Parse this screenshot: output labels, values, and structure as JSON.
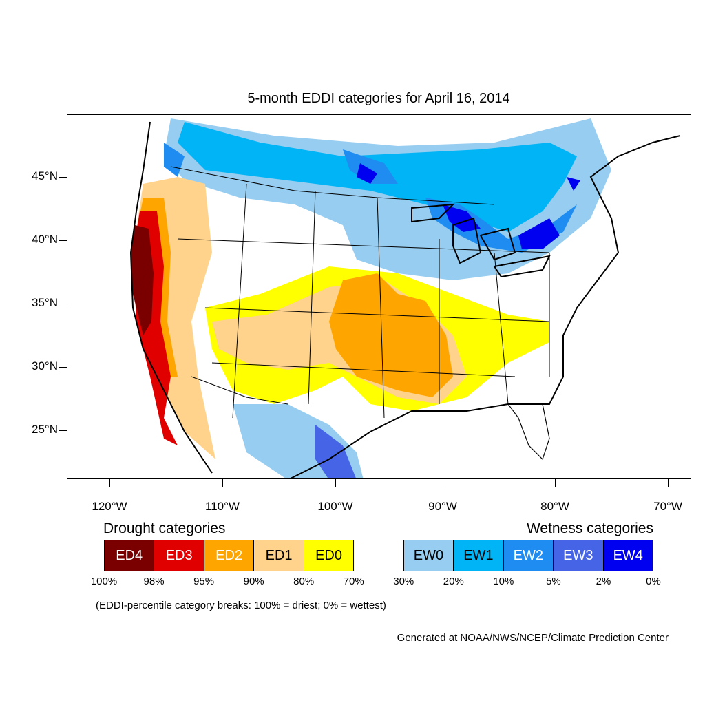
{
  "title": "5-month EDDI categories for April 16, 2014",
  "lat_labels": [
    "45°N",
    "40°N",
    "35°N",
    "30°N",
    "25°N"
  ],
  "lon_labels": [
    "120°W",
    "110°W",
    "100°W",
    "90°W",
    "80°W",
    "70°W"
  ],
  "legend": {
    "drought_heading": "Drought categories",
    "wetness_heading": "Wetness categories",
    "categories": [
      {
        "label": "ED4",
        "color": "#7a0000",
        "text_color": "#ffffff"
      },
      {
        "label": "ED3",
        "color": "#e00000",
        "text_color": "#ffffff"
      },
      {
        "label": "ED2",
        "color": "#ffa500",
        "text_color": "#ffffff"
      },
      {
        "label": "ED1",
        "color": "#ffd38c",
        "text_color": "#000000"
      },
      {
        "label": "ED0",
        "color": "#ffff00",
        "text_color": "#000000"
      },
      {
        "label": "",
        "color": "#ffffff",
        "text_color": "#000000"
      },
      {
        "label": "EW0",
        "color": "#96cdf0",
        "text_color": "#000000"
      },
      {
        "label": "EW1",
        "color": "#00b4f5",
        "text_color": "#000000"
      },
      {
        "label": "EW2",
        "color": "#1e8cf0",
        "text_color": "#ffffff"
      },
      {
        "label": "EW3",
        "color": "#4664e6",
        "text_color": "#ffffff"
      },
      {
        "label": "EW4",
        "color": "#0000f0",
        "text_color": "#ffffff"
      }
    ],
    "breaks": [
      "100%",
      "98%",
      "95%",
      "90%",
      "80%",
      "70%",
      "30%",
      "20%",
      "10%",
      "5%",
      "2%",
      "0%"
    ]
  },
  "note": "(EDDI-percentile category breaks: 100% = driest; 0% = wettest)",
  "credit": "Generated at NOAA/NWS/NCEP/Climate Prediction Center"
}
